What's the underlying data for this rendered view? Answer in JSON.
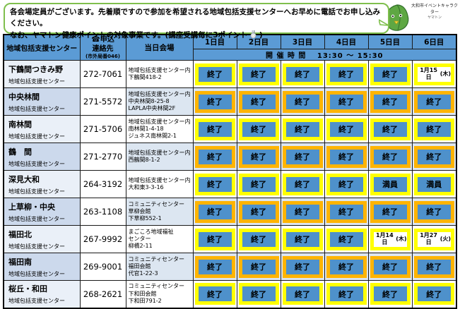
{
  "banner": {
    "line1": "各会場定員がございます。先着順ですので参加を希望される地域包括支援センターへお早めに電話でお申し込みください。",
    "line2_before": "なお、ヤマトン健康ポイントの対象事業です。(講座受講毎に3ポイント",
    "line2_after": ")"
  },
  "mascot": {
    "caption_line1": "大和市イベントキャラクター",
    "caption_line2": "ヤマトン"
  },
  "colors": {
    "header_blue": "#5b9bd5",
    "status_blue": "#4e91cb",
    "yellow": "#ffff00",
    "orange": "#ffb400",
    "band_blue": "#dce6f1",
    "bubble_green": "#7fbf4d"
  },
  "table": {
    "headers": {
      "center": "地域包括支援センター",
      "phone_icon": "☎",
      "phone_line1": "申込",
      "phone_line2": "連絡先",
      "phone_line3": "(市外局番046)",
      "venue": "当日会場",
      "days": [
        "1日目",
        "2日目",
        "3日目",
        "4日目",
        "5日目",
        "6日目"
      ],
      "time_row": "開 催 時 間　 13:30 ～ 15:30"
    },
    "status_labels": {
      "closed": "終了",
      "full": "満員"
    },
    "rows": [
      {
        "name": "下鶴間つきみ野",
        "sub": "地域包括支援センター",
        "phone": "272-7061",
        "venue_lines": [
          "地域包括支援センター内",
          "下鶴間418-2"
        ],
        "accent": "yellow",
        "statuses": [
          "closed",
          "closed",
          "closed",
          "closed",
          "closed",
          {
            "type": "date",
            "line1": "1月15日",
            "line2": "(木)"
          }
        ]
      },
      {
        "name": "中央林間",
        "sub": "地域包括支援センター",
        "phone": "271-5572",
        "venue_lines": [
          "地域包括支援センター内",
          "中央林間8-25-8",
          "LAPLA中央林間2F"
        ],
        "accent": "orange",
        "statuses": [
          "closed",
          "closed",
          "closed",
          "closed",
          "closed",
          "closed"
        ]
      },
      {
        "name": "南林間",
        "sub": "地域包括支援センター",
        "phone": "271-5706",
        "venue_lines": [
          "地域包括支援センター内",
          "南林間1-4-18",
          "ジュネス南林間2-1"
        ],
        "accent": "yellow",
        "statuses": [
          "closed",
          "closed",
          "closed",
          "closed",
          "closed",
          "closed"
        ]
      },
      {
        "name": "鶴　間",
        "sub": "地域包括支援センター",
        "phone": "271-2770",
        "venue_lines": [
          "地域包括支援センター内",
          "西鶴間8-1-2"
        ],
        "accent": "orange",
        "statuses": [
          "closed",
          "closed",
          "closed",
          "closed",
          "closed",
          "closed"
        ]
      },
      {
        "name": "深見大和",
        "sub": "地域包括支援センター",
        "phone": "264-3192",
        "venue_lines": [
          "地域包括支援センター内",
          "大和東3-3-16"
        ],
        "accent": "yellow",
        "statuses": [
          "closed",
          "closed",
          "closed",
          "closed",
          "full",
          "full"
        ]
      },
      {
        "name": "上草柳・中央",
        "sub": "地域包括支援センター",
        "phone": "263-1108",
        "venue_lines": [
          "コミュニティセンター",
          "草柳会館",
          "下草柳552-1"
        ],
        "accent": "orange",
        "statuses": [
          "closed",
          "closed",
          "closed",
          "closed",
          "closed",
          "closed"
        ]
      },
      {
        "name": "福田北",
        "sub": "地域包括支援センター",
        "phone": "267-9992",
        "venue_lines": [
          "まごころ地域福祉",
          "センター",
          "柳橋2-11"
        ],
        "accent": "yellow",
        "statuses": [
          "closed",
          "closed",
          "closed",
          "closed",
          {
            "type": "date",
            "line1": "1月14日",
            "line2": "(木)"
          },
          {
            "type": "date",
            "line1": "1月27日",
            "line2": "(火)"
          }
        ]
      },
      {
        "name": "福田南",
        "sub": "地域包括支援センター",
        "phone": "269-9001",
        "venue_lines": [
          "コミュニティセンター",
          "福田会館",
          "代官1-22-3"
        ],
        "accent": "orange",
        "statuses": [
          "closed",
          "closed",
          "closed",
          "closed",
          "closed",
          "closed"
        ]
      },
      {
        "name": "桜丘・和田",
        "sub": "地域包括支援センター",
        "phone": "268-2621",
        "venue_lines": [
          "コミュニティセンター",
          "下和田会館",
          "下和田791-2"
        ],
        "accent": "yellow",
        "statuses": [
          "closed",
          "closed",
          "closed",
          "closed",
          "closed",
          "closed"
        ]
      }
    ]
  }
}
